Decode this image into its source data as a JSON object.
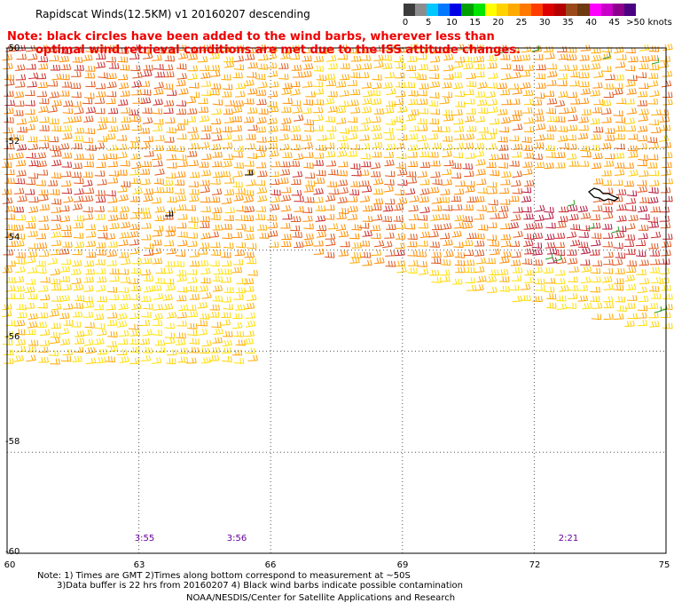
{
  "title": "Rapidscat Winds(12.5KM) v1 20160207 descending",
  "note_lines": [
    "Note: black circles have been added to the wind barbs, wherever less than",
    "optimal wind retrieval conditions are met due to the ISS attitude changes."
  ],
  "legend": {
    "labels": [
      "0",
      "5",
      "10",
      "15",
      "20",
      "25",
      "30",
      "35",
      "40",
      "45",
      ">50 knots"
    ],
    "colors": [
      "#3c3c3c",
      "#8c8c8c",
      "#00c8ff",
      "#0078ff",
      "#0000e6",
      "#00a000",
      "#00e600",
      "#ffff00",
      "#ffd200",
      "#ffaa00",
      "#ff7800",
      "#ff3c00",
      "#dc0000",
      "#b40000",
      "#9a4a1a",
      "#6e3a10",
      "#ff00ff",
      "#c800c8",
      "#8c008c",
      "#4b0082"
    ]
  },
  "map": {
    "lat_labels": [
      "-50",
      "-52",
      "-54",
      "-56",
      "-58",
      "-60"
    ],
    "lon_labels": [
      "60",
      "63",
      "66",
      "69",
      "72",
      "75"
    ],
    "pass_times": [
      {
        "label": "3:55",
        "lon": 63
      },
      {
        "label": "3:56",
        "lon": 65.2
      },
      {
        "label": "2:21",
        "lon": 72.8
      }
    ],
    "barb_colors": [
      "#ffff00",
      "#ffe100",
      "#ffd200",
      "#ffaa00",
      "#ff8c00",
      "#e0561c",
      "#cc2a2a",
      "#b4143c"
    ]
  },
  "footer": {
    "note1": "Note: 1) Times are GMT 2)Times along bottom correspond to measurement at ~50S",
    "note2": "3)Data buffer is 22 hrs from 20160207 4) Black wind barbs indicate possible contamination",
    "credit": "NOAA/NESDIS/Center for Satellite Applications and Research"
  }
}
